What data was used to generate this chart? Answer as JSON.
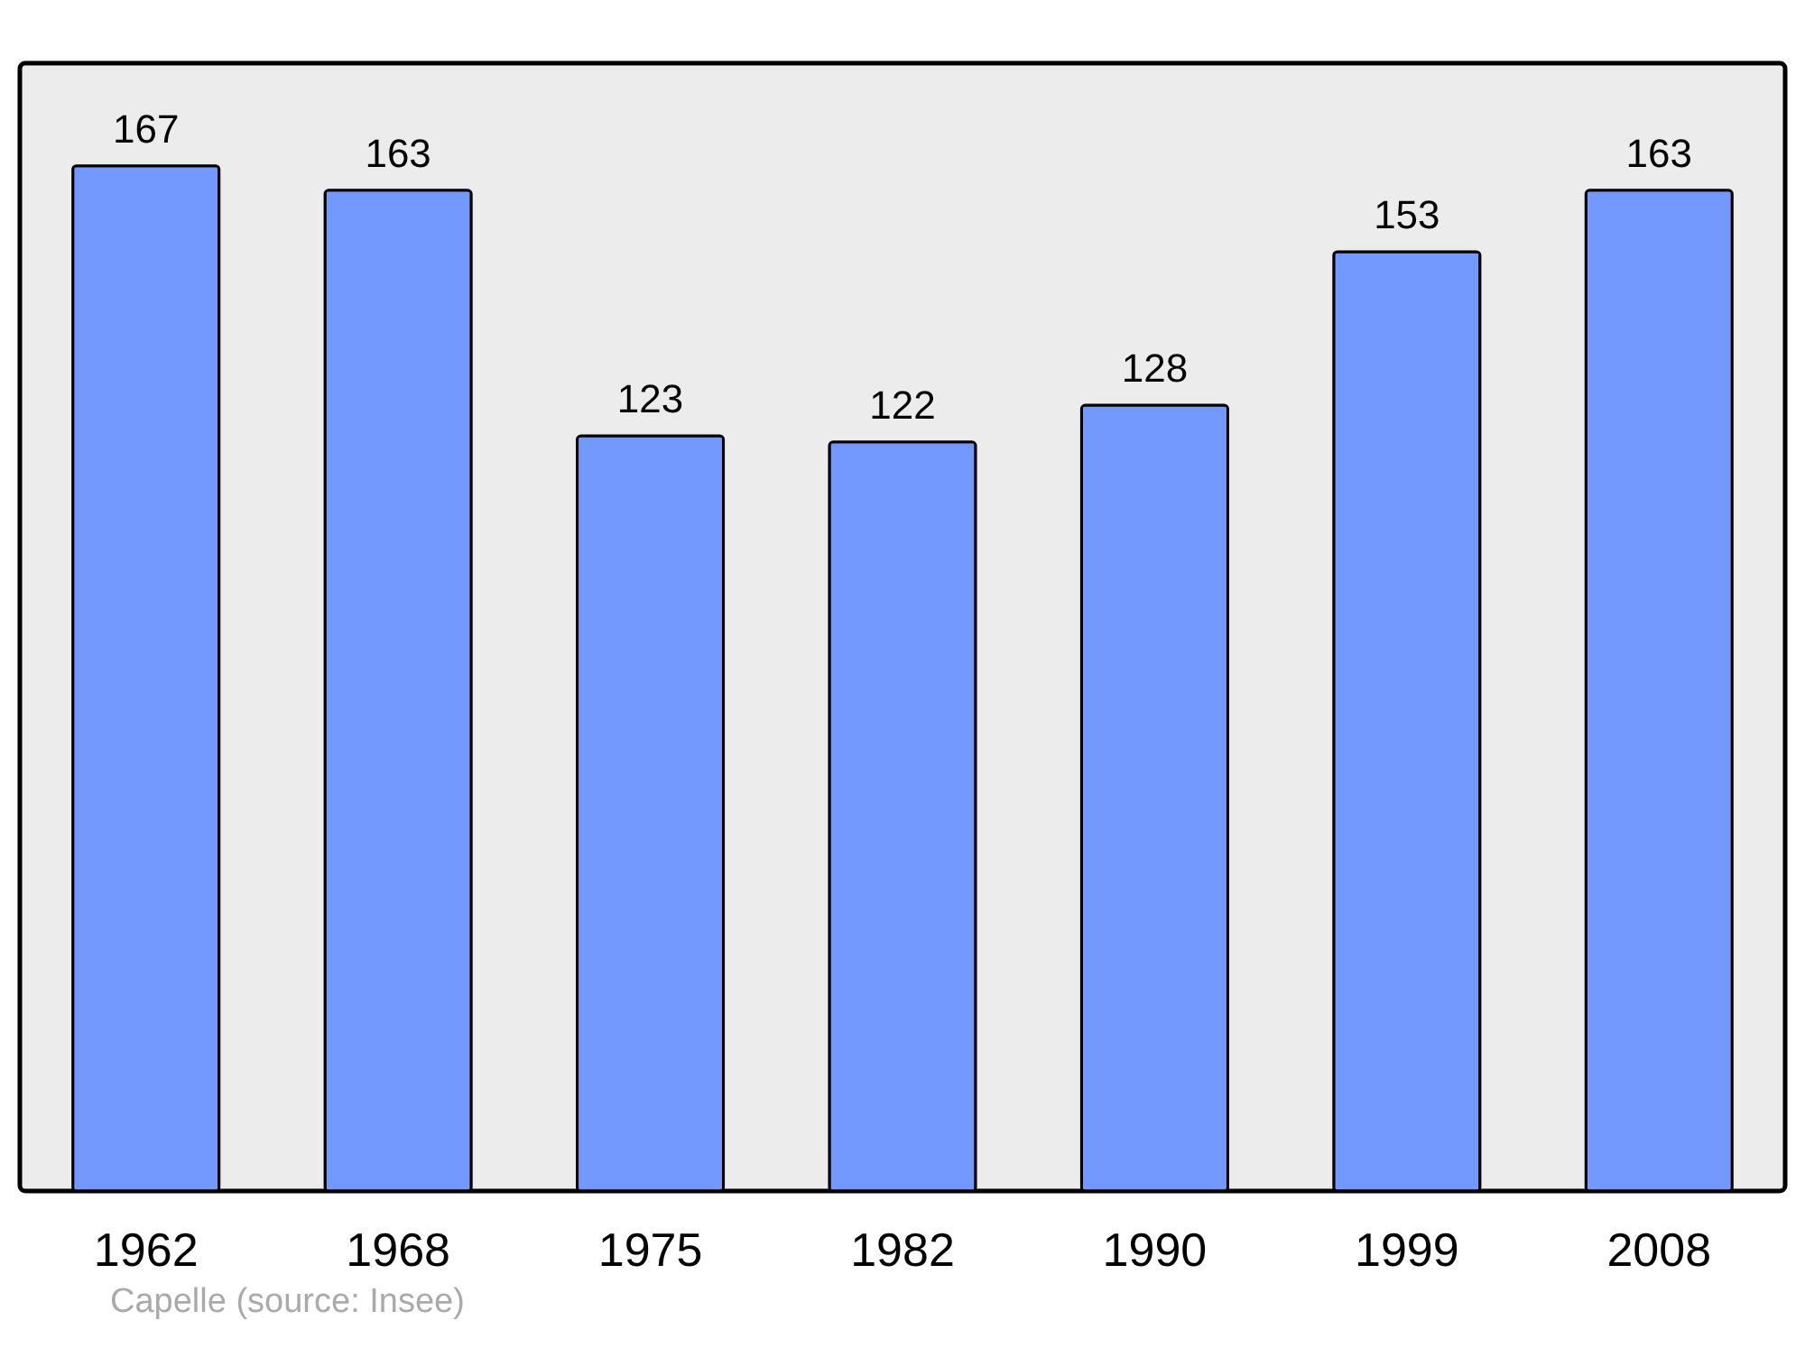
{
  "chart_data": {
    "type": "bar",
    "categories": [
      "1962",
      "1968",
      "1975",
      "1982",
      "1990",
      "1999",
      "2008"
    ],
    "values": [
      167,
      163,
      123,
      122,
      128,
      153,
      163
    ],
    "color": "#7399ff",
    "data_labels": true,
    "annotations": [
      "Capelle    (source: Insee)"
    ]
  }
}
